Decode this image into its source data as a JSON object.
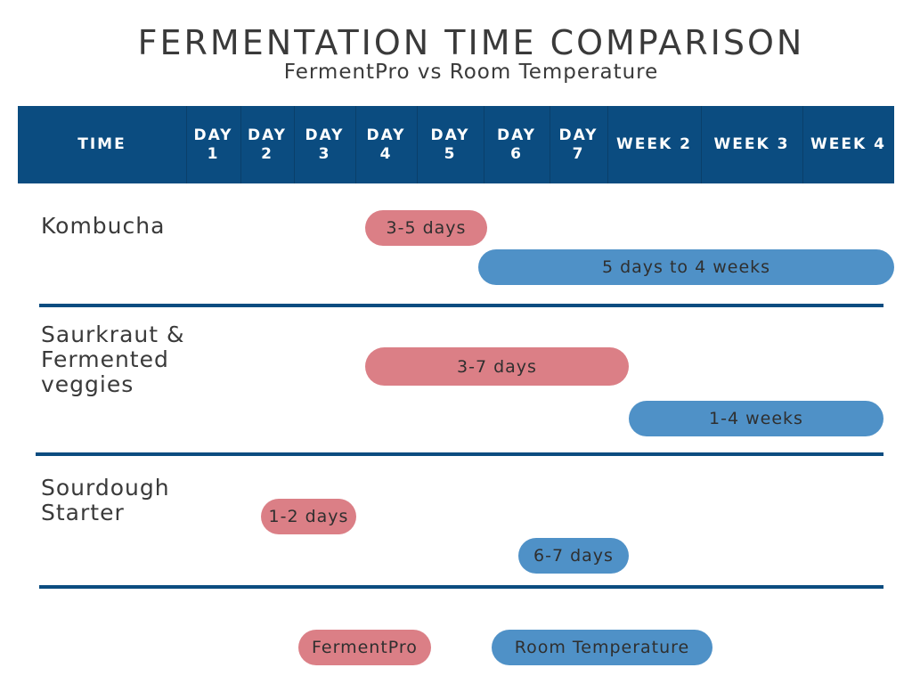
{
  "chart_data": {
    "type": "gantt",
    "title": "FERMENTATION TIME COMPARISON",
    "subtitle": "FermentPro vs Room Temperature",
    "header_label": "TIME",
    "columns": [
      "DAY\n1",
      "DAY\n2",
      "DAY\n3",
      "DAY\n4",
      "DAY\n5",
      "DAY\n6",
      "DAY\n7",
      "WEEK 2",
      "WEEK 3",
      "WEEK 4"
    ],
    "legend": [
      {
        "name": "FermentPro",
        "color": "#db7f86"
      },
      {
        "name": "Room Temperature",
        "color": "#4f91c7"
      }
    ],
    "rows": [
      {
        "label": "Kombucha",
        "bars": [
          {
            "series": "FermentPro",
            "label": "3-5 days",
            "start": "DAY 4",
            "end": "DAY 5"
          },
          {
            "series": "Room Temperature",
            "label": "5 days to 4 weeks",
            "start": "DAY 5",
            "end": "WEEK 4"
          }
        ]
      },
      {
        "label": "Saurkraut &\nFermented\nveggies",
        "bars": [
          {
            "series": "FermentPro",
            "label": "3-7 days",
            "start": "DAY 4",
            "end": "DAY 7"
          },
          {
            "series": "Room Temperature",
            "label": "1-4 weeks",
            "start": "WEEK 2",
            "end": "WEEK 4"
          }
        ]
      },
      {
        "label": "Sourdough\nStarter",
        "bars": [
          {
            "series": "FermentPro",
            "label": "1-2 days",
            "start": "DAY 2",
            "end": "DAY 3"
          },
          {
            "series": "Room Temperature",
            "label": "6-7 days",
            "start": "DAY 6",
            "end": "DAY 7"
          }
        ]
      }
    ],
    "colors": {
      "header": "#0b4c80",
      "divider": "#0b4c80"
    }
  }
}
